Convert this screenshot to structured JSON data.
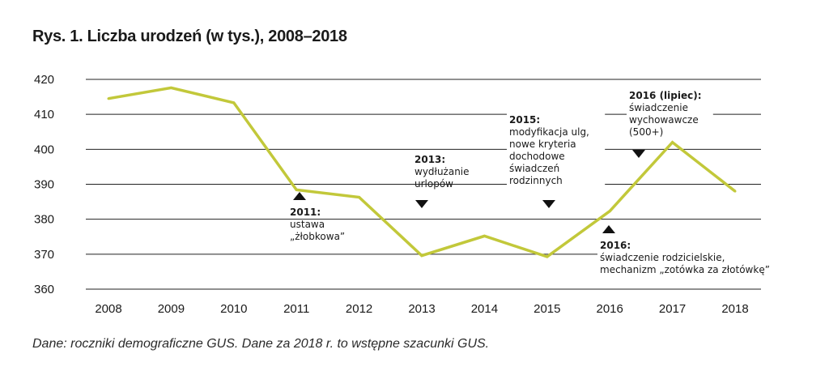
{
  "title": "Rys. 1. Liczba urodzeń (w tys.), 2008–2018",
  "source": "Dane: roczniki demograficzne GUS. Dane za 2018 r. to wstępne szacunki GUS.",
  "colors": {
    "line": "#c2c83a",
    "grid": "#222222",
    "text": "#1a1a1a"
  },
  "chart_data": {
    "type": "line",
    "title": "Rys. 1. Liczba urodzeń (w tys.), 2008–2018",
    "xlabel": "",
    "ylabel": "",
    "x": [
      "2008",
      "2009",
      "2010",
      "2011",
      "2012",
      "2013",
      "2014",
      "2015",
      "2016",
      "2017",
      "2018"
    ],
    "series": [
      {
        "values": [
          414.5,
          417.6,
          413.3,
          388.4,
          386.3,
          369.6,
          375.2,
          369.3,
          382.3,
          402.0,
          388.0
        ]
      }
    ],
    "ylim": [
      360,
      420
    ],
    "yticks": [
      360,
      370,
      380,
      390,
      400,
      410,
      420
    ],
    "grid": true,
    "legend": "none",
    "annotations": [
      {
        "id": "2011",
        "marker": "up",
        "year": 2011,
        "title": "2011:",
        "lines": [
          "ustawa",
          "„żłobkowa”"
        ]
      },
      {
        "id": "2013",
        "marker": "down",
        "year": 2013,
        "title": "2013:",
        "lines": [
          "wydłużanie",
          "urlopów"
        ]
      },
      {
        "id": "2015",
        "marker": "down",
        "year": 2015,
        "title": "2015:",
        "lines": [
          "modyfikacja ulg,",
          "nowe kryteria",
          "dochodowe",
          "świadczeń",
          "rodzinnych"
        ]
      },
      {
        "id": "2016",
        "marker": "up",
        "year": 2016,
        "title": "2016:",
        "lines": [
          "świadczenie rodzicielskie,",
          "mechanizm „zotówka za złotówkę”"
        ]
      },
      {
        "id": "2016-lipiec",
        "marker": "down",
        "year": 2016.5,
        "title": "2016 (lipiec):",
        "lines": [
          "świadczenie",
          "wychowawcze",
          "(500+)"
        ]
      }
    ]
  }
}
